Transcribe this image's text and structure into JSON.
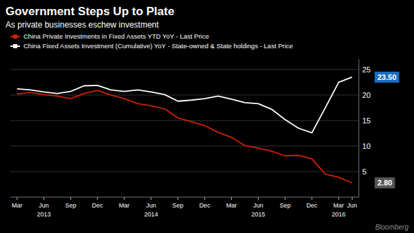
{
  "chart_data": {
    "type": "line",
    "title": "Government Steps Up to Plate",
    "subtitle": "As private businesses eschew investment",
    "categories": [
      "Mar",
      null,
      "Jun",
      null,
      "Sep",
      null,
      "Dec",
      null,
      "Mar",
      null,
      "Jun",
      null,
      "Sep",
      null,
      "Dec",
      null,
      "Mar",
      null,
      "Jun",
      null,
      "Sep",
      null,
      "Dec",
      null,
      "Mar",
      "Jun"
    ],
    "series": [
      {
        "name": "China Private Investments in Fixed Assets YTD YoY - Last Price",
        "color": "#cc2200",
        "values": [
          20.2,
          20.5,
          20.1,
          19.8,
          19.3,
          20.3,
          20.9,
          20.0,
          19.3,
          18.3,
          17.9,
          17.3,
          15.5,
          14.8,
          14.0,
          12.7,
          11.7,
          10.1,
          9.6,
          9.0,
          8.1,
          8.2,
          7.5,
          4.5,
          3.9,
          2.8
        ]
      },
      {
        "name": "China Fixed Assets Investment (Cumulative) YoY - State-owned & State holdings - Last Price",
        "color": "#ffffff",
        "values": [
          21.2,
          21.0,
          20.6,
          20.3,
          20.7,
          21.8,
          21.9,
          21.0,
          20.7,
          21.0,
          20.6,
          20.1,
          18.8,
          19.0,
          19.3,
          19.8,
          19.2,
          18.5,
          18.3,
          17.2,
          15.2,
          13.5,
          12.6,
          17.5,
          22.5,
          23.5
        ]
      }
    ],
    "ylim": [
      0,
      27
    ],
    "yticks": [
      5,
      10,
      15,
      20,
      25
    ],
    "grid": true,
    "legend": "upper left",
    "annotations": [
      {
        "text": "2013",
        "x": 2
      },
      {
        "text": "2014",
        "x": 10
      },
      {
        "text": "2015",
        "x": 18
      },
      {
        "text": "2016",
        "x": 24
      }
    ],
    "end_labels": [
      {
        "value": 23.5,
        "label": "23.50",
        "color": "#1a6bbf"
      },
      {
        "value": 2.8,
        "label": "2.80",
        "color": "#555555"
      }
    ],
    "note": "Bloomberg"
  }
}
